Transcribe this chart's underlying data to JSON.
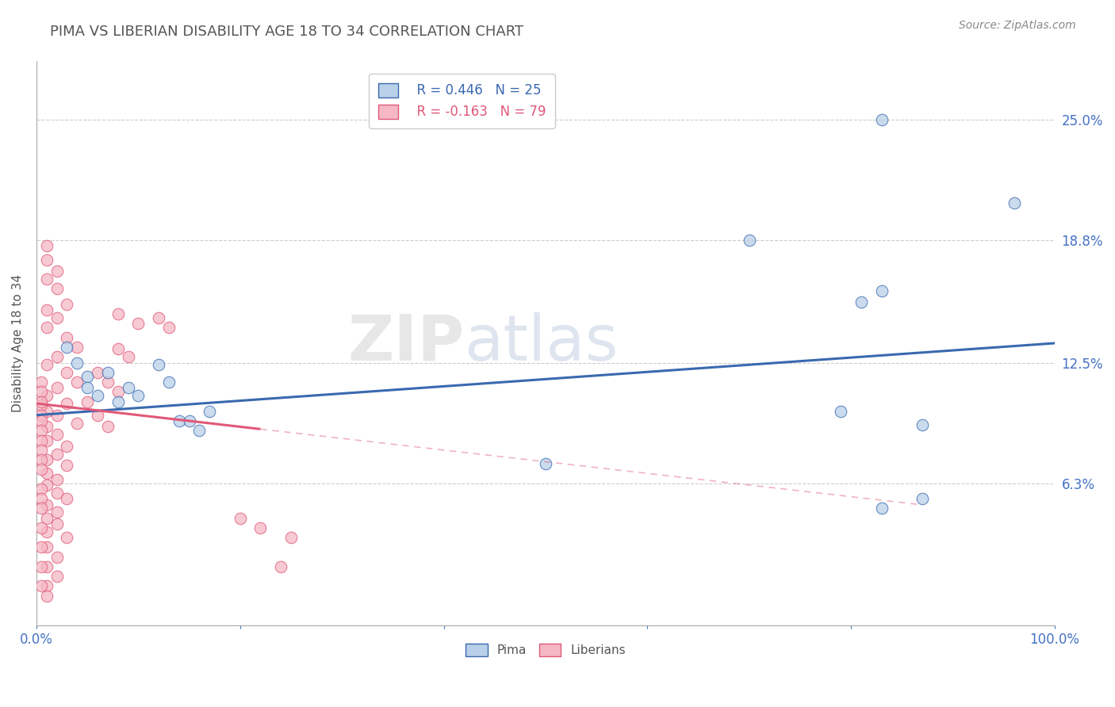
{
  "title": "PIMA VS LIBERIAN DISABILITY AGE 18 TO 34 CORRELATION CHART",
  "source": "Source: ZipAtlas.com",
  "ylabel": "Disability Age 18 to 34",
  "ytick_labels": [
    "6.3%",
    "12.5%",
    "18.8%",
    "25.0%"
  ],
  "ytick_values": [
    0.063,
    0.125,
    0.188,
    0.25
  ],
  "xlim": [
    0.0,
    1.0
  ],
  "ylim": [
    -0.01,
    0.28
  ],
  "pima_R": 0.446,
  "pima_N": 25,
  "liberian_R": -0.163,
  "liberian_N": 79,
  "pima_color": "#b8d0e8",
  "pima_line_color": "#3a69b0",
  "liberian_color": "#f5b8c4",
  "liberian_line_color": "#e05878",
  "pima_line_y0": 0.098,
  "pima_line_y1": 0.135,
  "lib_line_y0": 0.104,
  "lib_line_x_solid_end": 0.22,
  "lib_line_x_dash_end": 0.87,
  "pima_points": [
    [
      0.83,
      0.25
    ],
    [
      0.96,
      0.207
    ],
    [
      0.7,
      0.188
    ],
    [
      0.83,
      0.162
    ],
    [
      0.81,
      0.156
    ],
    [
      0.5,
      0.073
    ],
    [
      0.79,
      0.1
    ],
    [
      0.87,
      0.093
    ],
    [
      0.87,
      0.055
    ],
    [
      0.83,
      0.05
    ],
    [
      0.03,
      0.133
    ],
    [
      0.04,
      0.125
    ],
    [
      0.05,
      0.118
    ],
    [
      0.05,
      0.112
    ],
    [
      0.06,
      0.108
    ],
    [
      0.07,
      0.12
    ],
    [
      0.08,
      0.105
    ],
    [
      0.09,
      0.112
    ],
    [
      0.1,
      0.108
    ],
    [
      0.12,
      0.124
    ],
    [
      0.13,
      0.115
    ],
    [
      0.14,
      0.095
    ],
    [
      0.15,
      0.095
    ],
    [
      0.16,
      0.09
    ],
    [
      0.17,
      0.1
    ]
  ],
  "liberian_points": [
    [
      0.01,
      0.185
    ],
    [
      0.01,
      0.178
    ],
    [
      0.02,
      0.172
    ],
    [
      0.01,
      0.168
    ],
    [
      0.02,
      0.163
    ],
    [
      0.03,
      0.155
    ],
    [
      0.01,
      0.152
    ],
    [
      0.02,
      0.148
    ],
    [
      0.01,
      0.143
    ],
    [
      0.03,
      0.138
    ],
    [
      0.04,
      0.133
    ],
    [
      0.02,
      0.128
    ],
    [
      0.01,
      0.124
    ],
    [
      0.03,
      0.12
    ],
    [
      0.04,
      0.115
    ],
    [
      0.02,
      0.112
    ],
    [
      0.01,
      0.108
    ],
    [
      0.03,
      0.104
    ],
    [
      0.01,
      0.1
    ],
    [
      0.02,
      0.098
    ],
    [
      0.04,
      0.094
    ],
    [
      0.01,
      0.092
    ],
    [
      0.02,
      0.088
    ],
    [
      0.01,
      0.085
    ],
    [
      0.03,
      0.082
    ],
    [
      0.02,
      0.078
    ],
    [
      0.01,
      0.075
    ],
    [
      0.03,
      0.072
    ],
    [
      0.01,
      0.068
    ],
    [
      0.02,
      0.065
    ],
    [
      0.01,
      0.062
    ],
    [
      0.02,
      0.058
    ],
    [
      0.03,
      0.055
    ],
    [
      0.01,
      0.052
    ],
    [
      0.02,
      0.048
    ],
    [
      0.01,
      0.045
    ],
    [
      0.02,
      0.042
    ],
    [
      0.01,
      0.038
    ],
    [
      0.03,
      0.035
    ],
    [
      0.01,
      0.03
    ],
    [
      0.02,
      0.025
    ],
    [
      0.01,
      0.02
    ],
    [
      0.02,
      0.015
    ],
    [
      0.01,
      0.01
    ],
    [
      0.01,
      0.005
    ],
    [
      0.005,
      0.103
    ],
    [
      0.005,
      0.098
    ],
    [
      0.005,
      0.095
    ],
    [
      0.005,
      0.09
    ],
    [
      0.005,
      0.085
    ],
    [
      0.005,
      0.08
    ],
    [
      0.005,
      0.075
    ],
    [
      0.005,
      0.07
    ],
    [
      0.005,
      0.06
    ],
    [
      0.005,
      0.055
    ],
    [
      0.005,
      0.05
    ],
    [
      0.005,
      0.04
    ],
    [
      0.005,
      0.03
    ],
    [
      0.005,
      0.02
    ],
    [
      0.005,
      0.01
    ],
    [
      0.08,
      0.15
    ],
    [
      0.1,
      0.145
    ],
    [
      0.12,
      0.148
    ],
    [
      0.13,
      0.143
    ],
    [
      0.08,
      0.132
    ],
    [
      0.09,
      0.128
    ],
    [
      0.06,
      0.12
    ],
    [
      0.07,
      0.115
    ],
    [
      0.08,
      0.11
    ],
    [
      0.05,
      0.105
    ],
    [
      0.06,
      0.098
    ],
    [
      0.07,
      0.092
    ],
    [
      0.2,
      0.045
    ],
    [
      0.22,
      0.04
    ],
    [
      0.24,
      0.02
    ],
    [
      0.25,
      0.035
    ],
    [
      0.005,
      0.115
    ],
    [
      0.005,
      0.11
    ],
    [
      0.005,
      0.105
    ]
  ]
}
